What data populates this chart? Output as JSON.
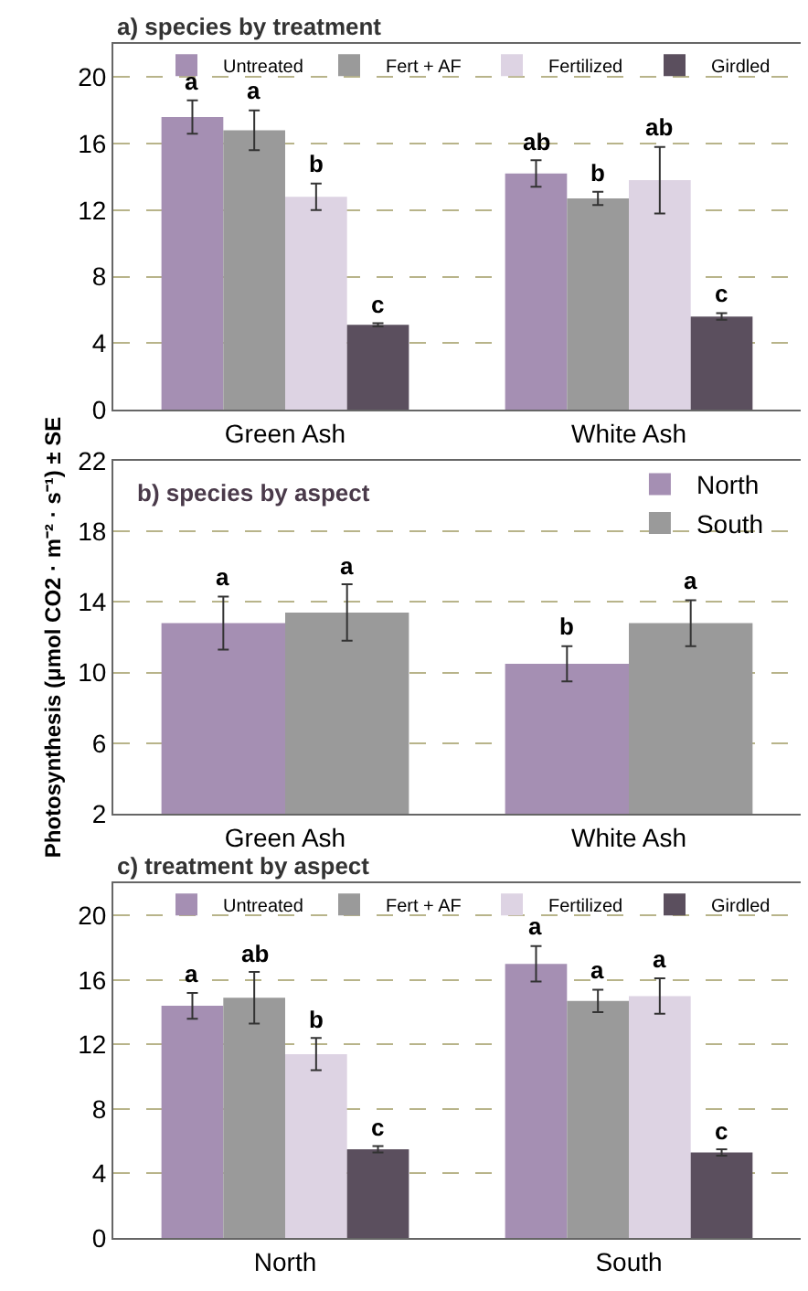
{
  "chart_data": [
    {
      "type": "bar",
      "title": "a) species by treatment",
      "categories": [
        "Green Ash",
        "White Ash"
      ],
      "ylim": [
        0,
        22
      ],
      "yticks": [
        0,
        4,
        8,
        12,
        16,
        20
      ],
      "grid": "y",
      "legend": "top right",
      "series": [
        {
          "name": "Untreated",
          "color": "#a58fb3",
          "values": [
            17.6,
            14.2
          ],
          "errors": [
            1.0,
            0.8
          ],
          "value_labels": [
            "a",
            "ab"
          ]
        },
        {
          "name": "Fert + AF",
          "color": "#9a9a9a",
          "values": [
            16.8,
            12.7
          ],
          "errors": [
            1.2,
            0.4
          ],
          "value_labels": [
            "a",
            "b"
          ]
        },
        {
          "name": "Fertilized",
          "color": "#ddd3e3",
          "values": [
            12.8,
            13.8
          ],
          "errors": [
            0.8,
            2.0
          ],
          "value_labels": [
            "b",
            "ab"
          ]
        },
        {
          "name": "Girdled",
          "color": "#5b4f5e",
          "values": [
            5.1,
            5.6
          ],
          "errors": [
            0.1,
            0.2
          ],
          "value_labels": [
            "c",
            "c"
          ]
        }
      ]
    },
    {
      "type": "bar",
      "title": "b) species by aspect",
      "ylabel": "Photosynthesis (μmol CO2 · m⁻² · s⁻¹) ± SE",
      "categories": [
        "Green Ash",
        "White Ash"
      ],
      "ylim": [
        2,
        22
      ],
      "yticks": [
        2,
        6,
        10,
        14,
        18,
        22
      ],
      "grid": "y",
      "legend": "top right",
      "series": [
        {
          "name": "North",
          "color": "#a58fb3",
          "values": [
            12.8,
            10.5
          ],
          "errors": [
            1.5,
            1.0
          ],
          "value_labels": [
            "a",
            "b"
          ]
        },
        {
          "name": "South",
          "color": "#9a9a9a",
          "values": [
            13.4,
            12.8
          ],
          "errors": [
            1.6,
            1.3
          ],
          "value_labels": [
            "a",
            "a"
          ]
        }
      ]
    },
    {
      "type": "bar",
      "title": "c) treatment by aspect",
      "categories": [
        "North",
        "South"
      ],
      "ylim": [
        0,
        22
      ],
      "yticks": [
        0,
        4,
        8,
        12,
        16,
        20
      ],
      "grid": "y",
      "legend": "top",
      "series": [
        {
          "name": "Untreated",
          "color": "#a58fb3",
          "values": [
            14.4,
            17.0
          ],
          "errors": [
            0.8,
            1.1
          ],
          "value_labels": [
            "a",
            "a"
          ]
        },
        {
          "name": "Fert + AF",
          "color": "#9a9a9a",
          "values": [
            14.9,
            14.7
          ],
          "errors": [
            1.6,
            0.7
          ],
          "value_labels": [
            "ab",
            "a"
          ]
        },
        {
          "name": "Fertilized",
          "color": "#ddd3e3",
          "values": [
            11.4,
            15.0
          ],
          "errors": [
            1.0,
            1.1
          ],
          "value_labels": [
            "b",
            "a"
          ]
        },
        {
          "name": "Girdled",
          "color": "#5b4f5e",
          "values": [
            5.5,
            5.3
          ],
          "errors": [
            0.2,
            0.2
          ],
          "value_labels": [
            "c",
            "c"
          ]
        }
      ]
    }
  ]
}
